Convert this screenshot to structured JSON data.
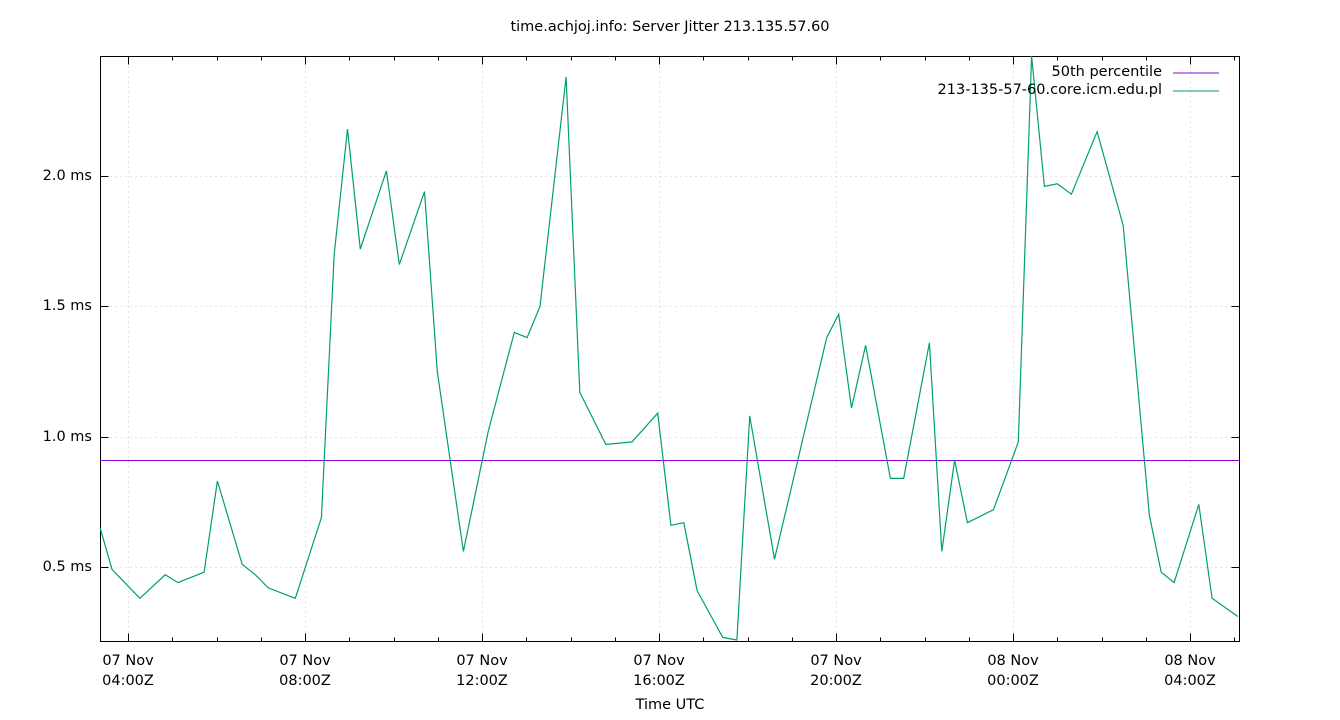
{
  "chart_data": {
    "type": "line",
    "title": "time.achjoj.info: Server Jitter 213.135.57.60",
    "xlabel": "Time UTC",
    "ylabel": "",
    "ylim": [
      0.22,
      2.46
    ],
    "xlim": [
      "07 Nov 03:22Z",
      "08 Nov 05:08Z"
    ],
    "grid": true,
    "legend_position": "top-right-inside",
    "y_ticks": [
      {
        "value": 0.5,
        "label": "0.5 ms"
      },
      {
        "value": 1.0,
        "label": "1.0 ms"
      },
      {
        "value": 1.5,
        "label": "1.5 ms"
      },
      {
        "value": 2.0,
        "label": "2.0 ms"
      }
    ],
    "x_ticks": [
      {
        "line1": "07 Nov",
        "line2": "04:00Z",
        "hour": 4
      },
      {
        "line1": "07 Nov",
        "line2": "08:00Z",
        "hour": 8
      },
      {
        "line1": "07 Nov",
        "line2": "12:00Z",
        "hour": 12
      },
      {
        "line1": "07 Nov",
        "line2": "16:00Z",
        "hour": 16
      },
      {
        "line1": "07 Nov",
        "line2": "20:00Z",
        "hour": 20
      },
      {
        "line1": "08 Nov",
        "line2": "00:00Z",
        "hour": 24
      },
      {
        "line1": "08 Nov",
        "line2": "04:00Z",
        "hour": 28
      }
    ],
    "series": [
      {
        "name": "50th percentile",
        "color": "#9400d3",
        "type": "constant",
        "value": 0.91
      },
      {
        "name": "213-135-57-60.core.icm.edu.pl",
        "color": "#009e73",
        "x_hours": [
          3.37,
          3.64,
          4.27,
          4.84,
          5.13,
          5.72,
          6.02,
          6.58,
          6.88,
          7.17,
          7.78,
          8.37,
          8.66,
          8.96,
          9.25,
          9.84,
          10.13,
          10.7,
          10.99,
          11.58,
          12.14,
          12.73,
          13.02,
          13.31,
          13.9,
          14.21,
          14.8,
          15.39,
          15.97,
          16.27,
          16.56,
          16.86,
          17.44,
          17.76,
          18.05,
          18.61,
          19.79,
          20.06,
          20.35,
          20.67,
          21.23,
          21.53,
          22.11,
          22.39,
          22.68,
          22.97,
          23.56,
          24.12,
          24.42,
          24.71,
          25.0,
          25.32,
          25.9,
          26.49,
          27.08,
          27.35,
          27.64,
          28.2,
          28.5,
          29.08
        ],
        "values": [
          0.65,
          0.49,
          0.38,
          0.47,
          0.44,
          0.48,
          0.83,
          0.51,
          0.47,
          0.42,
          0.38,
          0.69,
          1.7,
          2.18,
          1.72,
          2.02,
          1.66,
          1.94,
          1.25,
          0.56,
          1.02,
          1.4,
          1.38,
          1.5,
          2.38,
          1.17,
          0.97,
          0.98,
          1.09,
          0.66,
          0.67,
          0.41,
          0.23,
          0.22,
          1.08,
          0.53,
          1.38,
          1.47,
          1.11,
          1.35,
          0.84,
          0.84,
          1.36,
          0.56,
          0.91,
          0.67,
          0.72,
          0.98,
          2.46,
          1.96,
          1.97,
          1.93,
          2.17,
          1.81,
          0.7,
          0.48,
          0.44,
          0.74,
          0.38,
          0.31
        ]
      }
    ]
  },
  "legend": {
    "items": [
      {
        "label": "50th percentile",
        "color": "#9400d3"
      },
      {
        "label": "213-135-57-60.core.icm.edu.pl",
        "color": "#009e73"
      }
    ]
  }
}
